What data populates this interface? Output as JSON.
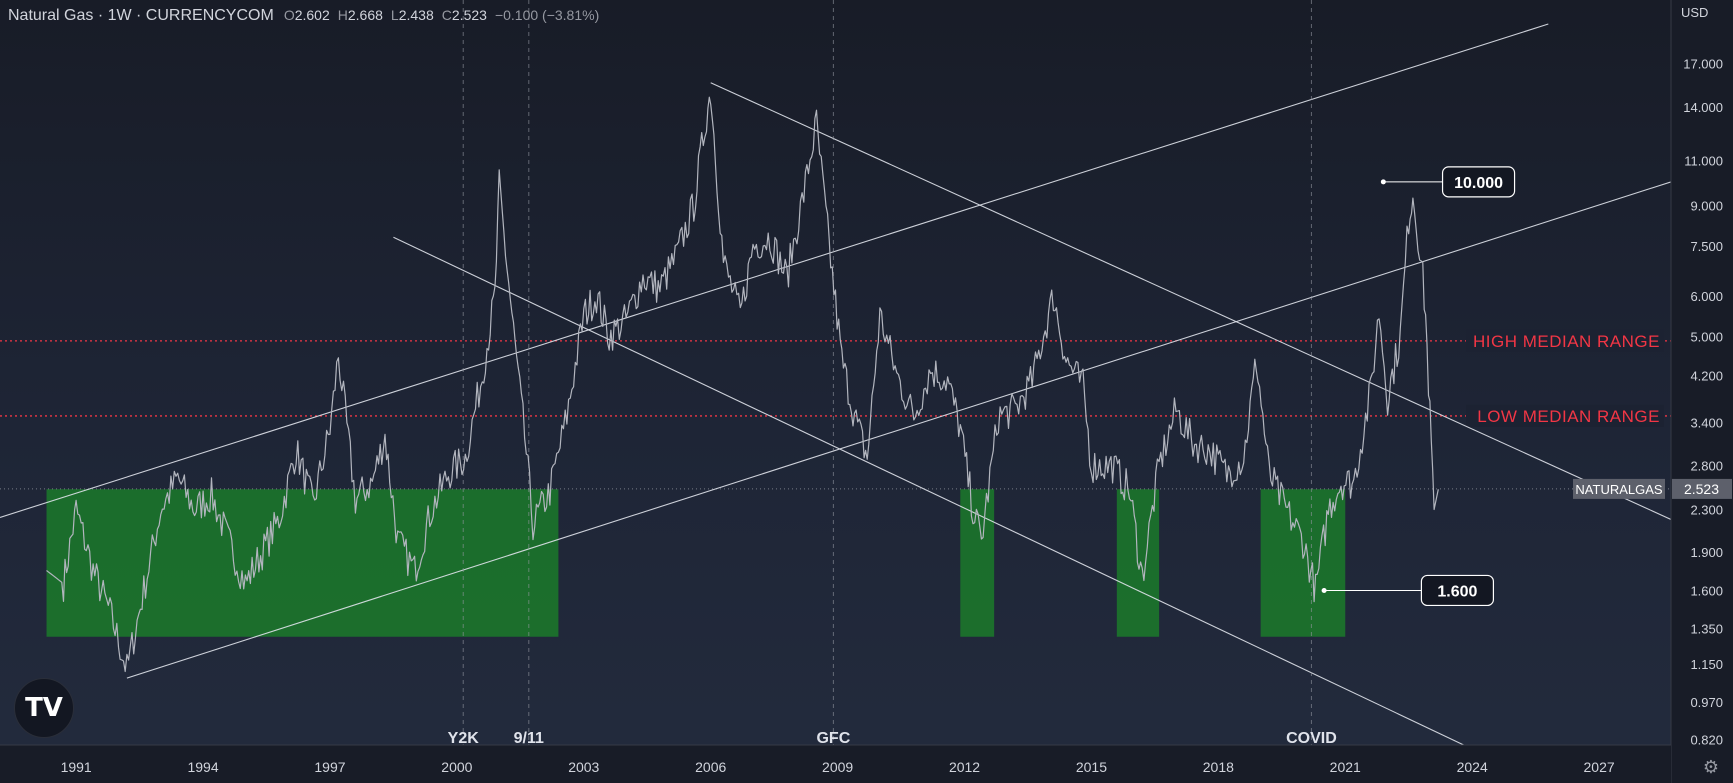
{
  "header": {
    "symbol": "Natural Gas · 1W · CURRENCYCOM",
    "o_label": "O",
    "o_value": "2.602",
    "h_label": "H",
    "h_value": "2.668",
    "l_label": "L",
    "l_value": "2.438",
    "c_label": "C",
    "c_value": "2.523",
    "change": "−0.100 (−3.81%)"
  },
  "currency_button": "USD",
  "colors": {
    "price": "#b2b5be",
    "trendline": "#e0e3eb",
    "median": "#f23645",
    "zone": "#1b7a2a",
    "axis_text": "#d1d4dc"
  },
  "chart_data": {
    "type": "line",
    "symbol": "NATURALGAS",
    "y_scale": "log",
    "ylim": [
      0.8,
      20.3
    ],
    "xlim": [
      1989.2,
      2028.7
    ],
    "x_ticks": [
      "1991",
      "1994",
      "1997",
      "2000",
      "2003",
      "2006",
      "2009",
      "2012",
      "2015",
      "2018",
      "2021",
      "2024",
      "2027"
    ],
    "y_ticks": [
      "17.000",
      "14.000",
      "11.000",
      "9.000",
      "7.500",
      "6.000",
      "5.000",
      "4.200",
      "3.400",
      "2.800",
      "2.300",
      "1.900",
      "1.600",
      "1.350",
      "1.150",
      "0.970",
      "0.820"
    ],
    "last_price": "2.523",
    "last_label": "NATURALGAS",
    "price_series": [
      [
        1990.3,
        1.75
      ],
      [
        1990.7,
        1.65
      ],
      [
        1991.0,
        2.3
      ],
      [
        1991.4,
        1.75
      ],
      [
        1991.8,
        1.45
      ],
      [
        1992.2,
        1.12
      ],
      [
        1992.6,
        1.6
      ],
      [
        1993.0,
        2.3
      ],
      [
        1993.4,
        2.65
      ],
      [
        1993.8,
        2.3
      ],
      [
        1994.2,
        2.45
      ],
      [
        1994.6,
        2.0
      ],
      [
        1995.0,
        1.65
      ],
      [
        1995.4,
        1.9
      ],
      [
        1995.8,
        2.2
      ],
      [
        1996.2,
        3.0
      ],
      [
        1996.6,
        2.35
      ],
      [
        1997.0,
        3.3
      ],
      [
        1997.2,
        4.6
      ],
      [
        1997.6,
        2.4
      ],
      [
        1998.0,
        2.6
      ],
      [
        1998.3,
        3.2
      ],
      [
        1998.6,
        2.0
      ],
      [
        1999.0,
        1.75
      ],
      [
        1999.4,
        2.3
      ],
      [
        1999.8,
        2.7
      ],
      [
        2000.2,
        2.9
      ],
      [
        2000.6,
        4.2
      ],
      [
        2000.9,
        6.0
      ],
      [
        2001.0,
        9.8
      ],
      [
        2001.3,
        5.5
      ],
      [
        2001.6,
        3.2
      ],
      [
        2001.8,
        2.15
      ],
      [
        2002.2,
        2.5
      ],
      [
        2002.6,
        3.5
      ],
      [
        2003.0,
        5.5
      ],
      [
        2003.3,
        6.0
      ],
      [
        2003.6,
        5.0
      ],
      [
        2004.0,
        5.4
      ],
      [
        2004.4,
        6.5
      ],
      [
        2004.8,
        6.2
      ],
      [
        2005.2,
        7.2
      ],
      [
        2005.6,
        9.0
      ],
      [
        2005.9,
        13.5
      ],
      [
        2006.0,
        15.0
      ],
      [
        2006.3,
        7.0
      ],
      [
        2006.7,
        5.5
      ],
      [
        2007.0,
        7.5
      ],
      [
        2007.4,
        7.8
      ],
      [
        2007.8,
        6.5
      ],
      [
        2008.2,
        9.5
      ],
      [
        2008.5,
        13.0
      ],
      [
        2008.8,
        7.5
      ],
      [
        2009.1,
        4.5
      ],
      [
        2009.4,
        3.5
      ],
      [
        2009.7,
        2.9
      ],
      [
        2010.0,
        5.5
      ],
      [
        2010.4,
        4.2
      ],
      [
        2010.8,
        3.5
      ],
      [
        2011.2,
        4.3
      ],
      [
        2011.6,
        4.1
      ],
      [
        2011.9,
        3.3
      ],
      [
        2012.2,
        2.3
      ],
      [
        2012.4,
        2.0
      ],
      [
        2012.8,
        3.5
      ],
      [
        2013.2,
        3.6
      ],
      [
        2013.6,
        4.1
      ],
      [
        2014.1,
        6.0
      ],
      [
        2014.4,
        4.5
      ],
      [
        2014.8,
        4.0
      ],
      [
        2015.0,
        2.8
      ],
      [
        2015.5,
        2.8
      ],
      [
        2015.9,
        2.5
      ],
      [
        2016.2,
        1.7
      ],
      [
        2016.6,
        2.8
      ],
      [
        2017.0,
        3.6
      ],
      [
        2017.4,
        3.1
      ],
      [
        2017.8,
        3.0
      ],
      [
        2018.2,
        2.7
      ],
      [
        2018.6,
        2.9
      ],
      [
        2018.9,
        4.5
      ],
      [
        2019.2,
        2.7
      ],
      [
        2019.6,
        2.3
      ],
      [
        2020.0,
        2.0
      ],
      [
        2020.3,
        1.6
      ],
      [
        2020.6,
        2.3
      ],
      [
        2020.9,
        2.6
      ],
      [
        2021.2,
        2.6
      ],
      [
        2021.6,
        3.9
      ],
      [
        2021.8,
        5.6
      ],
      [
        2022.0,
        3.8
      ],
      [
        2022.3,
        5.0
      ],
      [
        2022.5,
        8.5
      ],
      [
        2022.6,
        9.5
      ],
      [
        2022.8,
        7.0
      ],
      [
        2022.9,
        5.5
      ],
      [
        2023.0,
        3.5
      ],
      [
        2023.1,
        2.3
      ],
      [
        2023.2,
        2.52
      ]
    ],
    "zones": [
      {
        "x": [
          1990.3,
          2002.4
        ],
        "y": [
          1.3,
          2.52
        ]
      },
      {
        "x": [
          2011.9,
          2012.7
        ],
        "y": [
          1.3,
          2.52
        ]
      },
      {
        "x": [
          2015.6,
          2016.6
        ],
        "y": [
          1.3,
          2.52
        ]
      },
      {
        "x": [
          2019.0,
          2021.0
        ],
        "y": [
          1.3,
          2.52
        ]
      }
    ],
    "median_lines": [
      {
        "label": "HIGH MEDIAN RANGE",
        "y": 4.9
      },
      {
        "label": "LOW MEDIAN RANGE",
        "y": 3.5
      }
    ],
    "trendlines": [
      {
        "x1": 1989.2,
        "y1": 2.22,
        "x2": 2025.8,
        "y2": 20.3
      },
      {
        "x1": 1992.2,
        "y1": 1.08,
        "x2": 2028.7,
        "y2": 10.0
      },
      {
        "x1": 2006.0,
        "y1": 15.6,
        "x2": 2028.7,
        "y2": 2.2
      },
      {
        "x1": 1998.5,
        "y1": 7.8,
        "x2": 2023.8,
        "y2": 0.8
      }
    ],
    "events": [
      {
        "label": "Y2K",
        "x": 2000.15
      },
      {
        "label": "9/11",
        "x": 2001.7
      },
      {
        "label": "GFC",
        "x": 2008.9
      },
      {
        "label": "COVID",
        "x": 2020.2
      }
    ],
    "callouts": [
      {
        "label": "10.000",
        "x_from": 2021.9,
        "x_to": 2023.3,
        "y": 10.0
      },
      {
        "label": "1.600",
        "x_from": 2020.5,
        "x_to": 2022.8,
        "y": 1.6
      }
    ]
  }
}
